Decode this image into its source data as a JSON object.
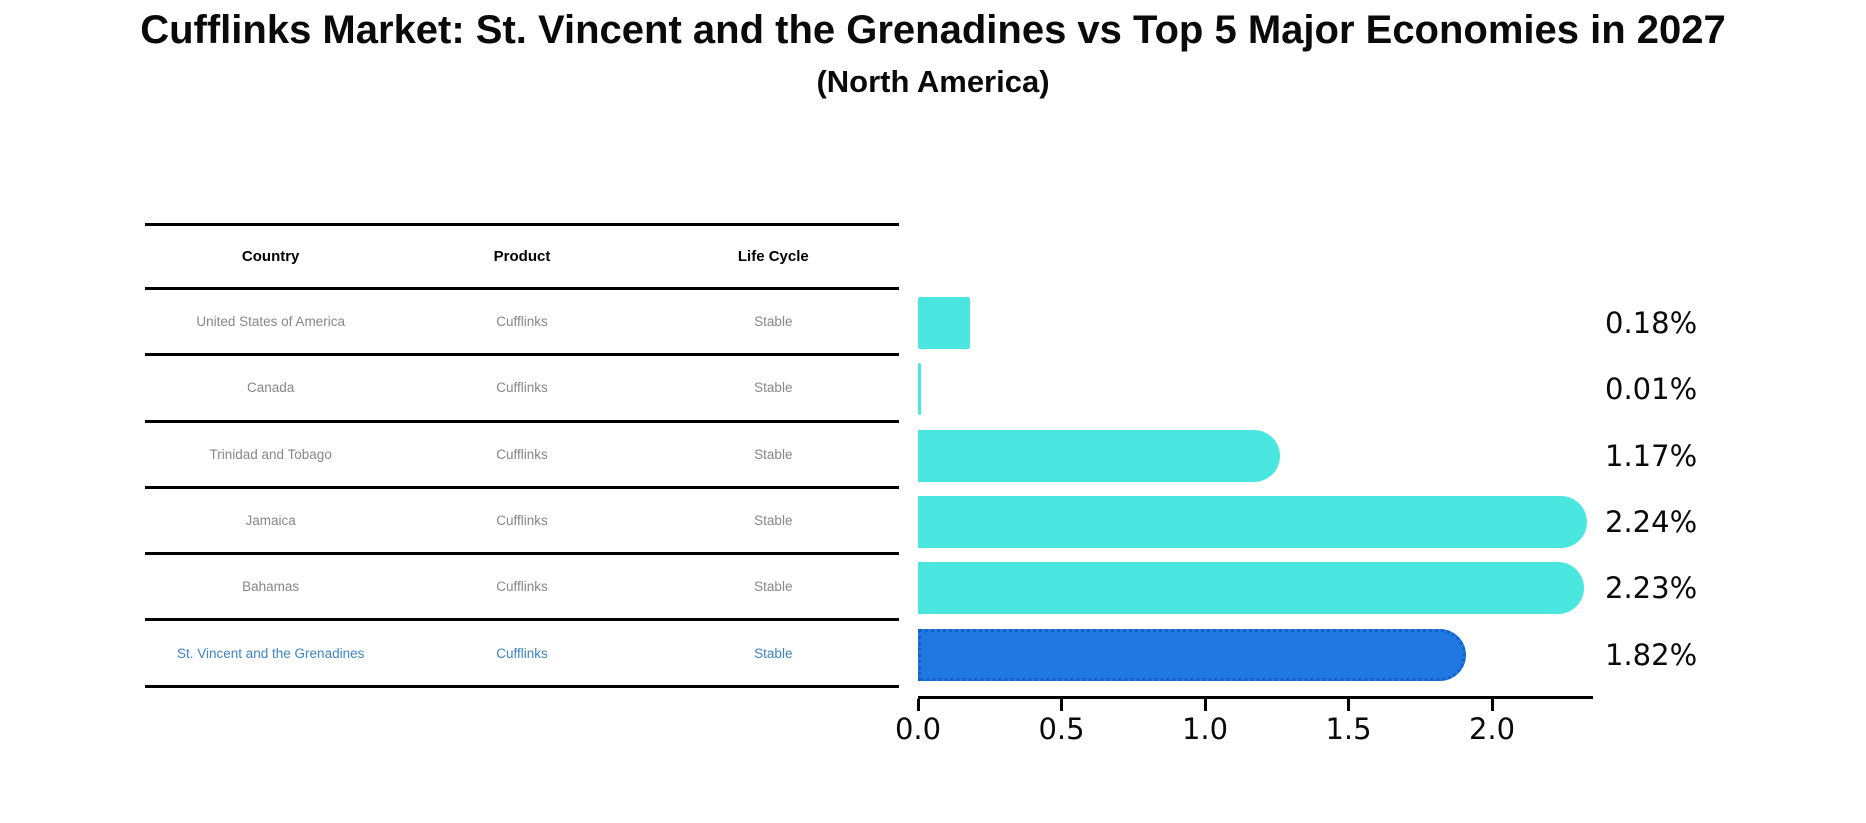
{
  "title": "Cufflinks Market: St. Vincent and the Grenadines vs Top 5 Major Economies in 2027",
  "subtitle": "(North America)",
  "table": {
    "headers": [
      "Country",
      "Product",
      "Life Cycle"
    ],
    "rows": [
      {
        "country": "United States of America",
        "product": "Cufflinks",
        "life_cycle": "Stable",
        "highlight": false
      },
      {
        "country": "Canada",
        "product": "Cufflinks",
        "life_cycle": "Stable",
        "highlight": false
      },
      {
        "country": "Trinidad and Tobago",
        "product": "Cufflinks",
        "life_cycle": "Stable",
        "highlight": false
      },
      {
        "country": "Jamaica",
        "product": "Cufflinks",
        "life_cycle": "Stable",
        "highlight": false
      },
      {
        "country": "Bahamas",
        "product": "Cufflinks",
        "life_cycle": "Stable",
        "highlight": false
      },
      {
        "country": "St. Vincent and the Grenadines",
        "product": "Cufflinks",
        "life_cycle": "Stable",
        "highlight": true
      }
    ]
  },
  "chart_data": {
    "type": "bar",
    "orientation": "horizontal",
    "title": "Cufflinks Market: St. Vincent and the Grenadines vs Top 5 Major Economies in 2027",
    "subtitle": "(North America)",
    "categories": [
      "United States of America",
      "Canada",
      "Trinidad and Tobago",
      "Jamaica",
      "Bahamas",
      "St. Vincent and the Grenadines"
    ],
    "values": [
      0.18,
      0.01,
      1.17,
      2.24,
      2.23,
      1.82
    ],
    "labels": [
      "0.18%",
      "0.01%",
      "1.17%",
      "2.24%",
      "2.23%",
      "1.82%"
    ],
    "x_ticks": [
      0.0,
      0.5,
      1.0,
      1.5,
      2.0
    ],
    "x_tick_labels": [
      "0.0",
      "0.5",
      "1.0",
      "1.5",
      "2.0"
    ],
    "xlim": [
      0,
      2.35
    ],
    "grid": false,
    "legend": false,
    "bar_color": "#4ae7e1",
    "highlight_color": "#2178e0",
    "highlight_border_color": "#1161c9",
    "highlight_index": 5,
    "highlight_text_color": "#3e84c6"
  }
}
